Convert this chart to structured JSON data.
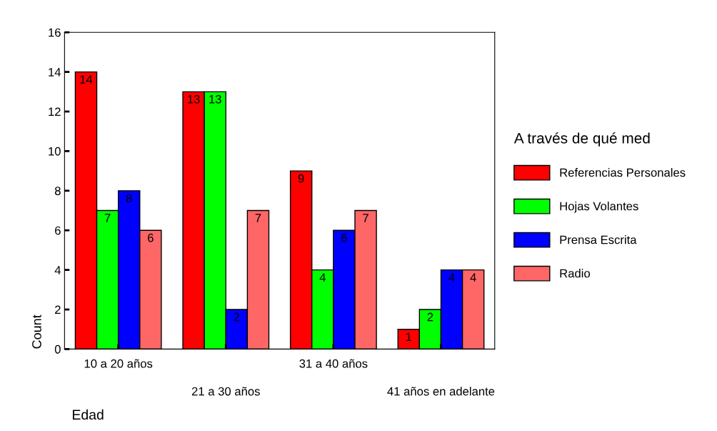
{
  "chart_data": {
    "type": "bar",
    "xlabel": "Edad",
    "ylabel": "Count",
    "legend_title": "A través de qué med",
    "categories": [
      "10 a 20 años",
      "21 a 30 años",
      "31 a 40 años",
      "41 años en adelante"
    ],
    "series": [
      {
        "name": "Referencias Personales",
        "color": "#ff0000",
        "values": [
          14,
          13,
          9,
          1
        ]
      },
      {
        "name": "Hojas Volantes",
        "color": "#00ff00",
        "values": [
          7,
          13,
          4,
          2
        ]
      },
      {
        "name": "Prensa Escrita",
        "color": "#0000ff",
        "values": [
          8,
          2,
          6,
          4
        ]
      },
      {
        "name": "Radio",
        "color": "#ff6666",
        "values": [
          6,
          7,
          7,
          4
        ]
      }
    ],
    "ylim": [
      0,
      16
    ],
    "yticks": [
      0,
      2,
      4,
      6,
      8,
      10,
      12,
      14,
      16
    ],
    "grid": false,
    "legend": "right",
    "data_labels": true
  }
}
